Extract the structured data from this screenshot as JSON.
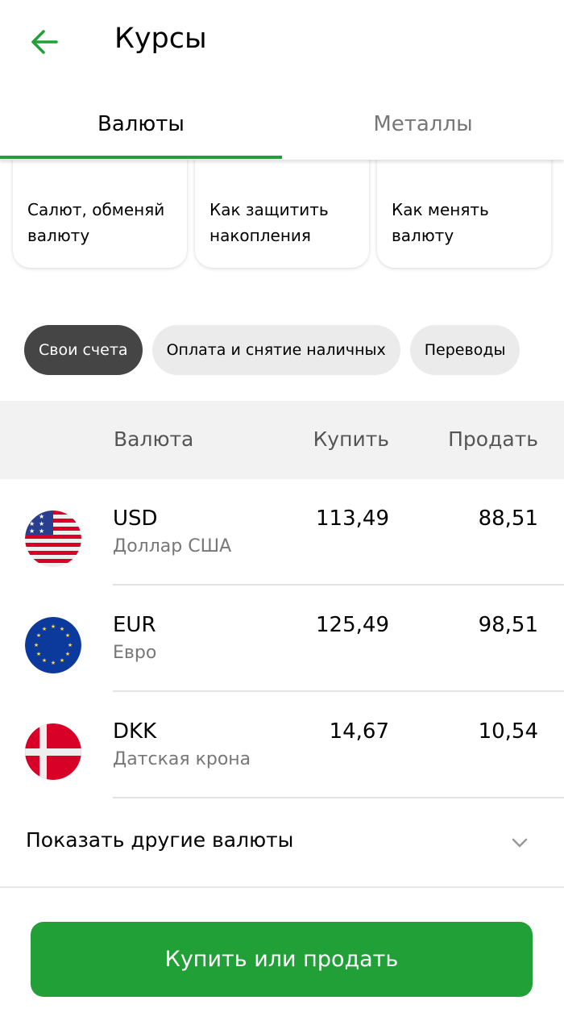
{
  "header": {
    "title": "Курсы"
  },
  "tabs": [
    {
      "label": "Валюты",
      "active": true
    },
    {
      "label": "Металлы",
      "active": false
    }
  ],
  "cards": [
    "Салют, обменяй\nвалюту",
    "Как защитить\nнакопления",
    "Как менять\nвалюту"
  ],
  "chips": [
    {
      "label": "Свои счета",
      "active": true
    },
    {
      "label": "Оплата и снятие наличных"
    },
    {
      "label": "Переводы"
    }
  ],
  "table": {
    "headers": {
      "currency": "Валюта",
      "buy": "Купить",
      "sell": "Продать"
    },
    "rows": [
      {
        "code": "USD",
        "name": "Доллар США",
        "buy": "113,49",
        "sell": "88,51",
        "flag": "us-flag"
      },
      {
        "code": "EUR",
        "name": "Евро",
        "buy": "125,49",
        "sell": "98,51",
        "flag": "eu-flag"
      },
      {
        "code": "DKK",
        "name": "Датская крона",
        "buy": "14,67",
        "sell": "10,54",
        "flag": "dk-flag"
      }
    ]
  },
  "more_label": "Показать другие валюты",
  "action_button": "Купить или продать",
  "colors": {
    "accent": "#21a038",
    "chip_active": "#454545",
    "chip": "#ebebeb"
  }
}
